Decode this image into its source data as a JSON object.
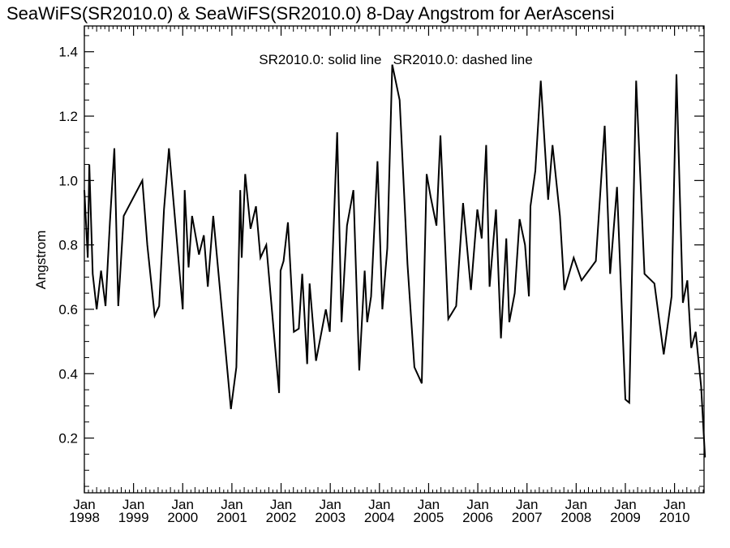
{
  "chart_data": {
    "type": "line",
    "title": "SeaWiFS(SR2010.0) & SeaWiFS(SR2010.0) 8-Day Angstrom for AerAscensi",
    "xlabel": "",
    "ylabel": "Angstrom",
    "legend_text": "SR2010.0: solid line   SR2010.0: dashed line",
    "legend_placement": "top-center",
    "grid": false,
    "xlim": [
      1998.0,
      2010.6
    ],
    "ylim": [
      0.03,
      1.48
    ],
    "yticks": [
      {
        "value": 0.2,
        "label": "0.2"
      },
      {
        "value": 0.4,
        "label": "0.4"
      },
      {
        "value": 0.6,
        "label": "0.6"
      },
      {
        "value": 0.8,
        "label": "0.8"
      },
      {
        "value": 1.0,
        "label": "1.0"
      },
      {
        "value": 1.2,
        "label": "1.2"
      },
      {
        "value": 1.4,
        "label": "1.4"
      }
    ],
    "xticks": [
      {
        "value": 1998,
        "month": "Jan",
        "year": "1998"
      },
      {
        "value": 1999,
        "month": "Jan",
        "year": "1999"
      },
      {
        "value": 2000,
        "month": "Jan",
        "year": "2000"
      },
      {
        "value": 2001,
        "month": "Jan",
        "year": "2001"
      },
      {
        "value": 2002,
        "month": "Jan",
        "year": "2002"
      },
      {
        "value": 2003,
        "month": "Jan",
        "year": "2003"
      },
      {
        "value": 2004,
        "month": "Jan",
        "year": "2004"
      },
      {
        "value": 2005,
        "month": "Jan",
        "year": "2005"
      },
      {
        "value": 2006,
        "month": "Jan",
        "year": "2006"
      },
      {
        "value": 2007,
        "month": "Jan",
        "year": "2007"
      },
      {
        "value": 2008,
        "month": "Jan",
        "year": "2008"
      },
      {
        "value": 2009,
        "month": "Jan",
        "year": "2009"
      },
      {
        "value": 2010,
        "month": "Jan",
        "year": "2010"
      }
    ],
    "series": [
      {
        "style": "solid",
        "x": [
          1998.0,
          1998.07,
          1998.1,
          1998.17,
          1998.25,
          1998.34,
          1998.43,
          1998.52,
          1998.61,
          1998.69,
          1998.8,
          1999.18,
          1999.28,
          1999.43,
          1999.52,
          1999.62,
          1999.72,
          2000.0,
          2000.04,
          2000.12,
          2000.19,
          2000.33,
          2000.43,
          2000.51,
          2000.62,
          2000.98,
          2001.09,
          2001.17,
          2001.2,
          2001.27,
          2001.38,
          2001.49,
          2001.58,
          2001.7,
          2001.96,
          2001.99,
          2002.05,
          2002.14,
          2002.26,
          2002.36,
          2002.43,
          2002.53,
          2002.58,
          2002.71,
          2002.91,
          2002.99,
          2003.14,
          2003.23,
          2003.34,
          2003.47,
          2003.59,
          2003.7,
          2003.75,
          2003.83,
          2003.96,
          2004.06,
          2004.16,
          2004.26,
          2004.41,
          2004.57,
          2004.71,
          2004.86,
          2004.96,
          2005.04,
          2005.16,
          2005.24,
          2005.4,
          2005.56,
          2005.7,
          2005.86,
          2005.99,
          2006.08,
          2006.17,
          2006.24,
          2006.37,
          2006.47,
          2006.58,
          2006.64,
          2006.75,
          2006.85,
          2006.96,
          2007.04,
          2007.07,
          2007.17,
          2007.28,
          2007.43,
          2007.52,
          2007.67,
          2007.76,
          2007.95,
          2008.11,
          2008.4,
          2008.58,
          2008.69,
          2008.83,
          2009.0,
          2009.08,
          2009.22,
          2009.39,
          2009.59,
          2009.78,
          2009.94,
          2010.04,
          2010.09,
          2010.17,
          2010.26,
          2010.34,
          2010.43,
          2010.54,
          2010.62
        ],
        "y": [
          0.97,
          0.76,
          1.05,
          0.71,
          0.6,
          0.72,
          0.61,
          0.87,
          1.1,
          0.61,
          0.89,
          1.0,
          0.8,
          0.58,
          0.61,
          0.91,
          1.1,
          0.6,
          0.97,
          0.73,
          0.89,
          0.77,
          0.83,
          0.67,
          0.89,
          0.29,
          0.42,
          0.97,
          0.76,
          1.02,
          0.85,
          0.92,
          0.76,
          0.8,
          0.34,
          0.72,
          0.75,
          0.87,
          0.53,
          0.54,
          0.71,
          0.43,
          0.68,
          0.44,
          0.6,
          0.53,
          1.15,
          0.56,
          0.86,
          0.97,
          0.41,
          0.72,
          0.56,
          0.64,
          1.06,
          0.6,
          0.79,
          1.36,
          1.25,
          0.74,
          0.42,
          0.37,
          1.02,
          0.95,
          0.86,
          1.14,
          0.57,
          0.61,
          0.93,
          0.66,
          0.91,
          0.82,
          1.11,
          0.67,
          0.91,
          0.51,
          0.82,
          0.56,
          0.65,
          0.88,
          0.8,
          0.64,
          0.92,
          1.03,
          1.31,
          0.94,
          1.11,
          0.89,
          0.66,
          0.76,
          0.69,
          0.75,
          1.17,
          0.71,
          0.98,
          0.32,
          0.31,
          1.31,
          0.71,
          0.68,
          0.46,
          0.64,
          1.33,
          1.05,
          0.62,
          0.69,
          0.48,
          0.53,
          0.36,
          0.14
        ]
      }
    ]
  }
}
